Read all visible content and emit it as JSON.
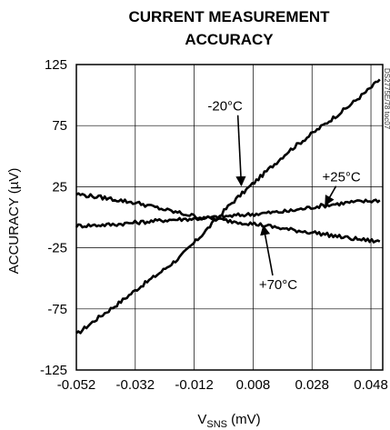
{
  "chart_data": {
    "type": "line",
    "title_line1": "CURRENT MEASUREMENT",
    "title_line2": "ACCURACY",
    "xlabel_main": "V",
    "xlabel_sub": "SNS",
    "xlabel_unit": " (mV)",
    "ylabel": "ACCURACY (µV)",
    "xlim": [
      -0.052,
      0.052
    ],
    "ylim": [
      -125,
      125
    ],
    "x_ticks": [
      -0.052,
      -0.032,
      -0.012,
      0.008,
      0.028,
      0.048
    ],
    "x_tick_labels": [
      "-0.052",
      "-0.032",
      "-0.012",
      "0.008",
      "0.028",
      "0.048"
    ],
    "y_ticks": [
      125,
      75,
      25,
      -25,
      -75,
      -125
    ],
    "y_tick_labels": [
      "125",
      "75",
      "25",
      "-25",
      "-75",
      "-125"
    ],
    "grid": true,
    "watermark": "DS2775E/78 toc07",
    "series": [
      {
        "name": "-20°C",
        "x": [
          -0.052,
          -0.045,
          -0.038,
          -0.031,
          -0.024,
          -0.017,
          -0.01,
          -0.005,
          0.0,
          0.01,
          0.02,
          0.03,
          0.04,
          0.048,
          0.051
        ],
        "y": [
          -96,
          -83,
          -71,
          -58,
          -46,
          -33,
          -16,
          -3,
          10,
          32,
          54,
          72,
          90,
          106,
          113
        ]
      },
      {
        "name": "+25°C",
        "x": [
          -0.052,
          -0.04,
          -0.03,
          -0.02,
          -0.01,
          -0.005,
          0.0,
          0.01,
          0.02,
          0.03,
          0.04,
          0.051
        ],
        "y": [
          -7,
          -6,
          -4,
          -2,
          -1,
          0,
          1,
          3,
          5,
          9,
          12,
          14
        ]
      },
      {
        "name": "+70°C",
        "x": [
          -0.052,
          -0.04,
          -0.03,
          -0.02,
          -0.01,
          0.0,
          0.01,
          0.02,
          0.03,
          0.04,
          0.051
        ],
        "y": [
          19,
          15,
          11,
          5,
          0,
          -3,
          -6,
          -10,
          -13,
          -17,
          -20
        ]
      }
    ],
    "annotations": [
      {
        "text": "-20°C",
        "label_x": -0.0015,
        "label_y": 88,
        "arrow_x": 0.004,
        "arrow_y": 26
      },
      {
        "text": "+25°C",
        "label_x": 0.038,
        "label_y": 30,
        "arrow_x": 0.0325,
        "arrow_y": 10
      },
      {
        "text": "+70°C",
        "label_x": 0.0165,
        "label_y": -58,
        "arrow_x": 0.0115,
        "arrow_y": -7
      }
    ]
  }
}
